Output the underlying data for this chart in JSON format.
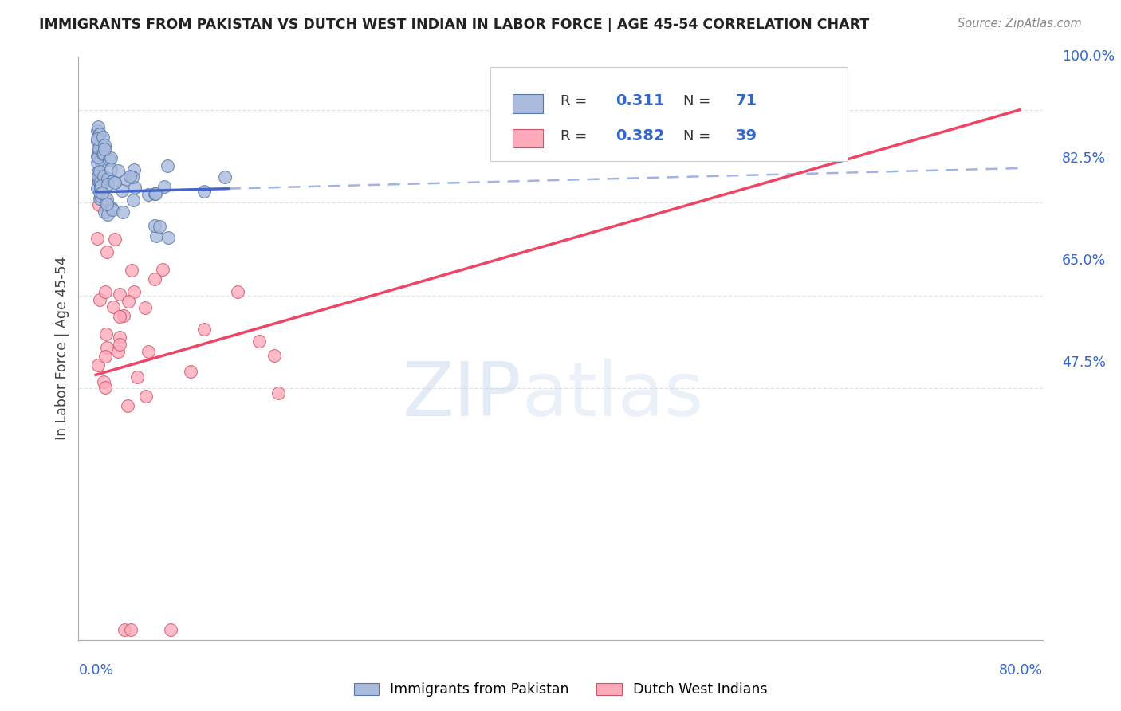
{
  "title": "IMMIGRANTS FROM PAKISTAN VS DUTCH WEST INDIAN IN LABOR FORCE | AGE 45-54 CORRELATION CHART",
  "source": "Source: ZipAtlas.com",
  "ylabel": "In Labor Force | Age 45-54",
  "xlim": [
    0.0,
    0.8
  ],
  "ylim": [
    0.0,
    1.05
  ],
  "blue_fill": "#AABBDD",
  "blue_edge": "#5577AA",
  "pink_fill": "#FFAABB",
  "pink_edge": "#CC5566",
  "trendline_blue": "#4466CC",
  "trendline_pink": "#EE4466",
  "grid_color": "#DDDDDD",
  "right_label_color": "#3366CC",
  "ytick_labels": [
    "100.0%",
    "82.5%",
    "65.0%",
    "47.5%"
  ],
  "ytick_values": [
    1.0,
    0.825,
    0.65,
    0.475
  ],
  "legend_R1": "0.311",
  "legend_N1": "71",
  "legend_R2": "0.382",
  "legend_N2": "39"
}
